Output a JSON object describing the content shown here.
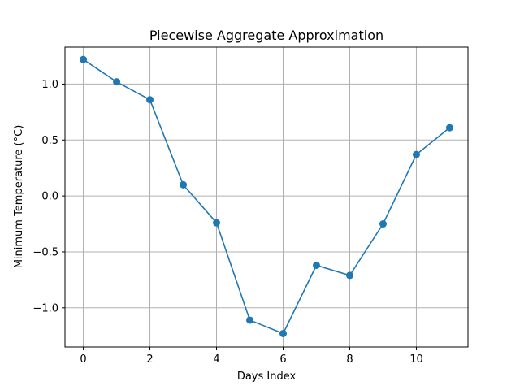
{
  "chart_data": {
    "type": "line",
    "title": "Piecewise Aggregate Approximation",
    "xlabel": "Days Index",
    "ylabel": "Minimum Temperature (°C)",
    "x": [
      0,
      1,
      2,
      3,
      4,
      5,
      6,
      7,
      8,
      9,
      10,
      11
    ],
    "series": [
      {
        "values": [
          1.22,
          1.02,
          0.86,
          0.1,
          -0.24,
          -1.11,
          -1.23,
          -0.62,
          -0.71,
          -0.25,
          0.37,
          0.61
        ],
        "color": "#1f77b4",
        "marker": "circle"
      }
    ],
    "xlim": [
      -0.55,
      11.55
    ],
    "ylim": [
      -1.35,
      1.33
    ],
    "xticks": [
      0,
      2,
      4,
      6,
      8,
      10
    ],
    "xtick_labels": [
      "0",
      "2",
      "4",
      "6",
      "8",
      "10"
    ],
    "yticks": [
      -1.0,
      -0.5,
      0.0,
      0.5,
      1.0
    ],
    "ytick_labels": [
      "−1.0",
      "−0.5",
      "0.0",
      "0.5",
      "1.0"
    ],
    "grid": true
  }
}
